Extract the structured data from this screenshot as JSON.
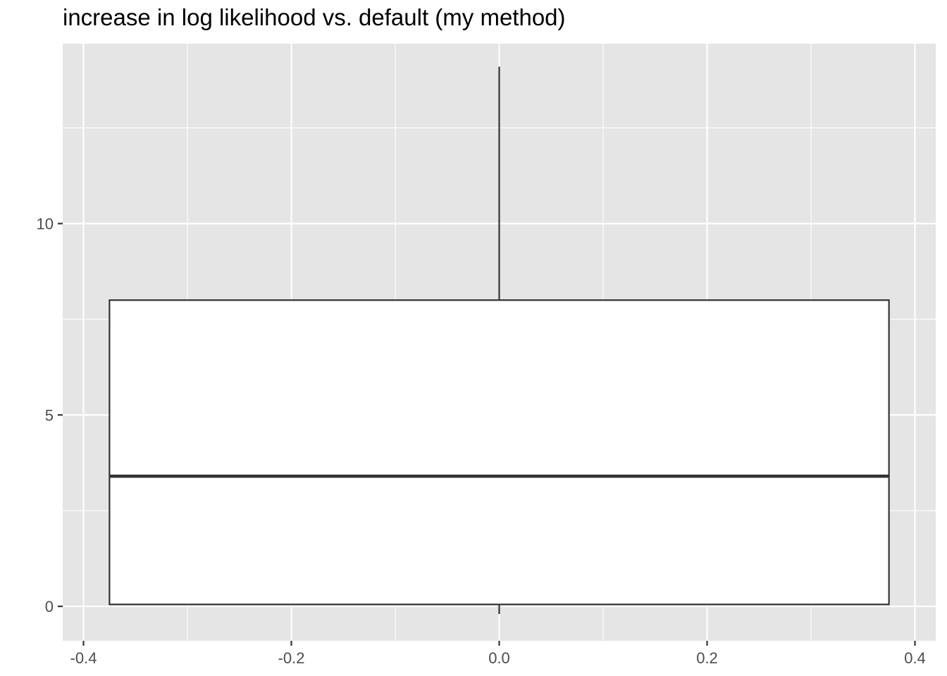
{
  "chart_data": {
    "type": "boxplot",
    "title": "increase in log likelihood vs. default (my method)",
    "xlabel": "",
    "ylabel": "",
    "xlim": [
      -0.42,
      0.42
    ],
    "ylim": [
      -0.9,
      14.7
    ],
    "x_ticks": [
      -0.4,
      -0.2,
      0.0,
      0.2,
      0.4
    ],
    "x_tick_labels": [
      "-0.4",
      "-0.2",
      "0.0",
      "0.2",
      "0.4"
    ],
    "y_ticks": [
      0,
      5,
      10
    ],
    "y_tick_labels": [
      "0",
      "5",
      "10"
    ],
    "grid": true,
    "box": {
      "x_center": 0.0,
      "x_left": -0.375,
      "x_right": 0.375,
      "whisker_low": -0.2,
      "q1": 0.05,
      "median": 3.4,
      "q3": 8.0,
      "whisker_high": 14.1
    },
    "colors": {
      "panel_background": "#e5e5e5",
      "grid_major": "#ffffff",
      "box_fill": "#ffffff",
      "box_line": "#333333",
      "tick_text": "#4d4d4d"
    }
  }
}
